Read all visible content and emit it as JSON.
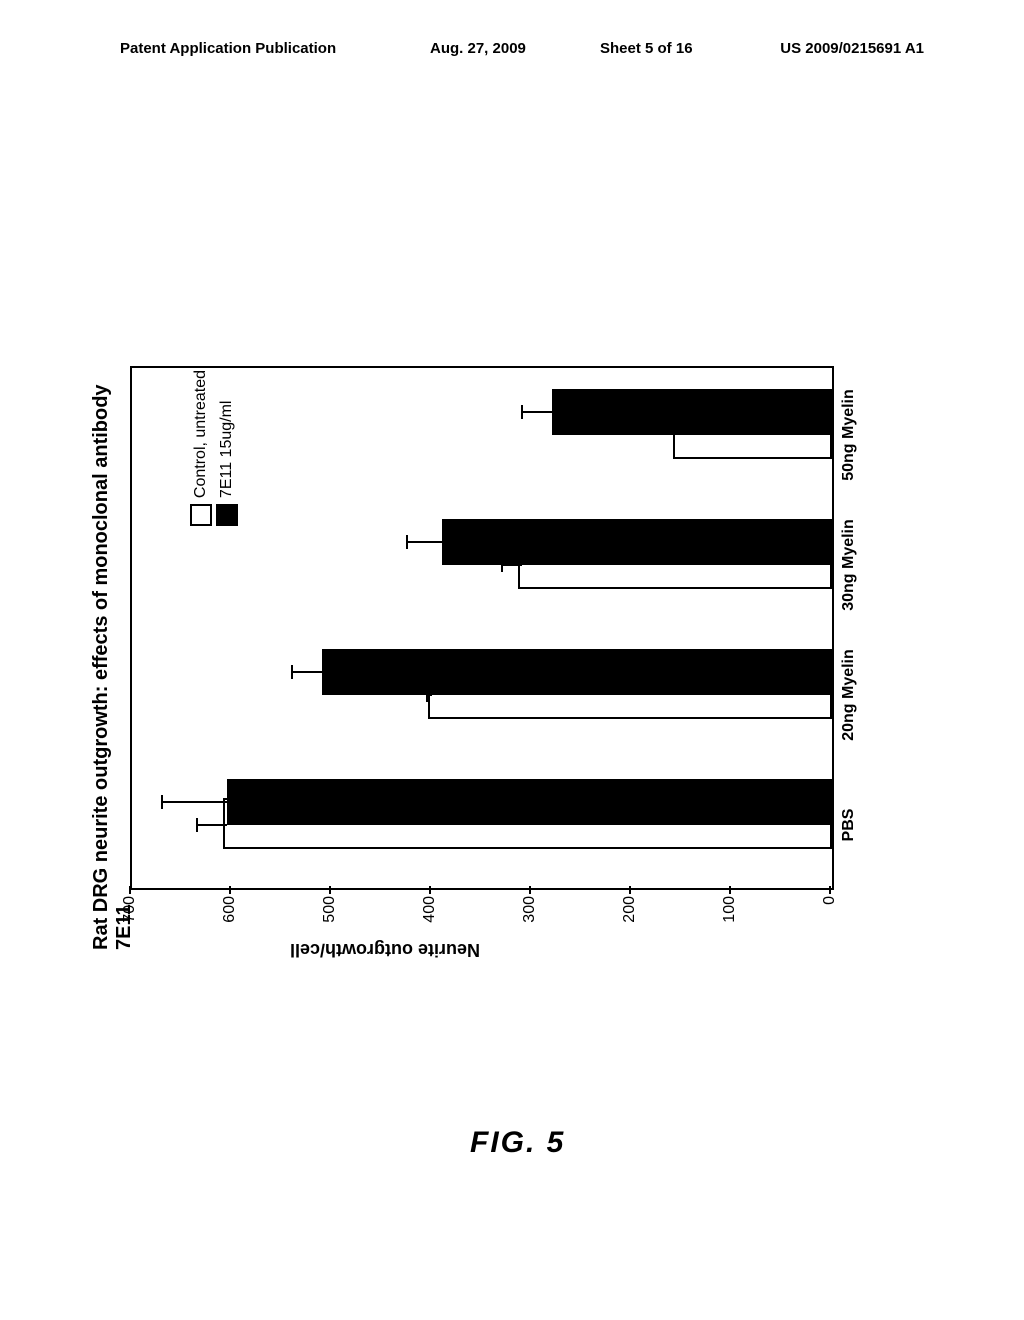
{
  "header": {
    "left": "Patent Application Publication",
    "date": "Aug. 27, 2009",
    "sheet": "Sheet 5 of 16",
    "docnum": "US 2009/0215691 A1"
  },
  "chart": {
    "type": "bar",
    "title": "Rat DRG neurite outgrowth: effects of monoclonal antibody 7E11",
    "ylabel": "Neurite outgrowth/cell",
    "ylim": [
      0,
      700
    ],
    "ytick_step": 100,
    "yticks": [
      0,
      100,
      200,
      300,
      400,
      500,
      600,
      700
    ],
    "categories": [
      "PBS",
      "20ng Myelin",
      "30ng Myelin",
      "50ng Myelin"
    ],
    "series": [
      {
        "name": "Control, untreated",
        "color": "#ffffff",
        "border": "#000000",
        "values": [
          605,
          400,
          310,
          155
        ],
        "errors": [
          30,
          5,
          20,
          0
        ]
      },
      {
        "name": "7E11 15ug/ml",
        "color": "#000000",
        "border": "#000000",
        "values": [
          605,
          510,
          390,
          280
        ],
        "errors": [
          65,
          30,
          35,
          30
        ]
      }
    ],
    "bar_width": 0.36,
    "background_color": "#ffffff",
    "axis_color": "#000000",
    "title_fontsize": 20,
    "label_fontsize": 18,
    "tick_fontsize": 16
  },
  "figure_label": "FIG. 5"
}
